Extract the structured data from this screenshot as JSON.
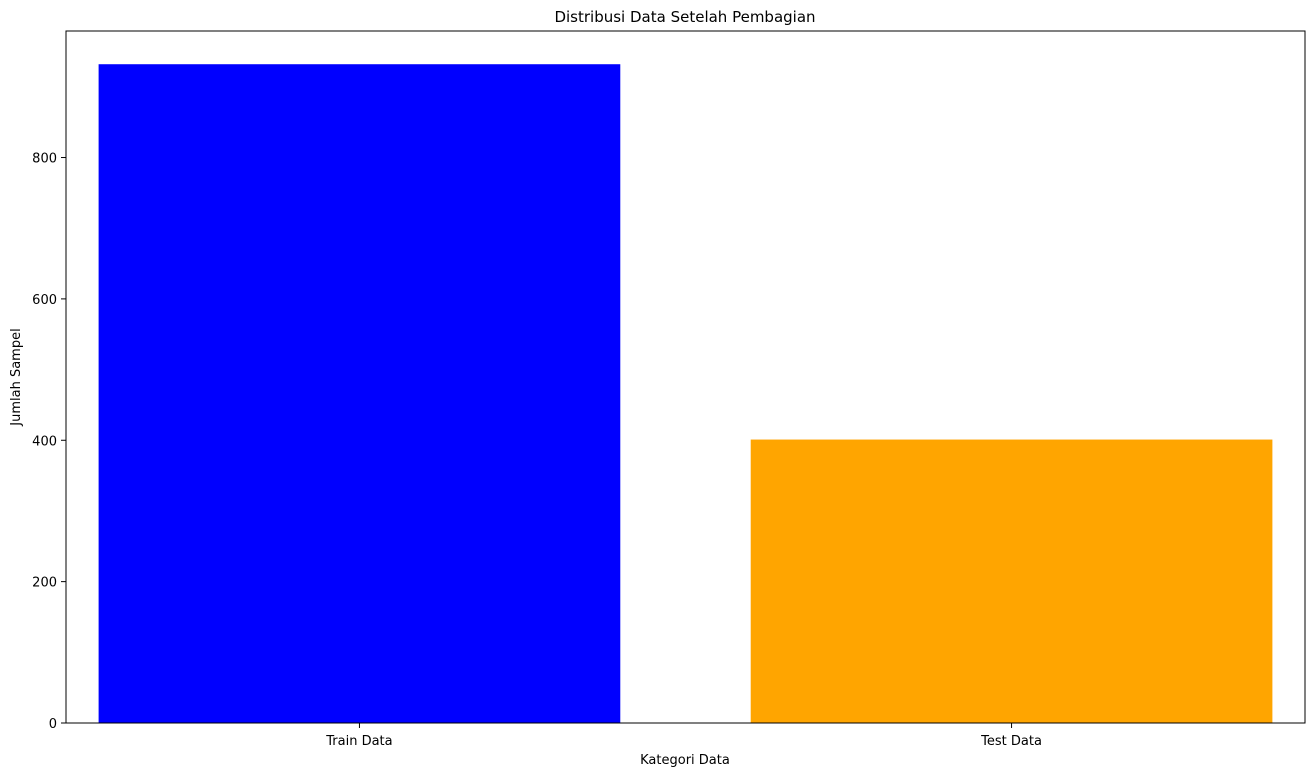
{
  "chart_data": {
    "type": "bar",
    "title": "Distribusi Data Setelah Pembagian",
    "xlabel": "Kategori Data",
    "ylabel": "Jumlah Sampel",
    "categories": [
      "Train Data",
      "Test Data"
    ],
    "values": [
      932,
      401
    ],
    "colors": [
      "#0000ff",
      "#ffa500"
    ],
    "ylim": [
      0,
      979
    ],
    "yticks": [
      0,
      200,
      400,
      600,
      800
    ],
    "ytick_labels": [
      "0",
      "200",
      "400",
      "600",
      "800"
    ],
    "grid": false,
    "legend": "none"
  }
}
